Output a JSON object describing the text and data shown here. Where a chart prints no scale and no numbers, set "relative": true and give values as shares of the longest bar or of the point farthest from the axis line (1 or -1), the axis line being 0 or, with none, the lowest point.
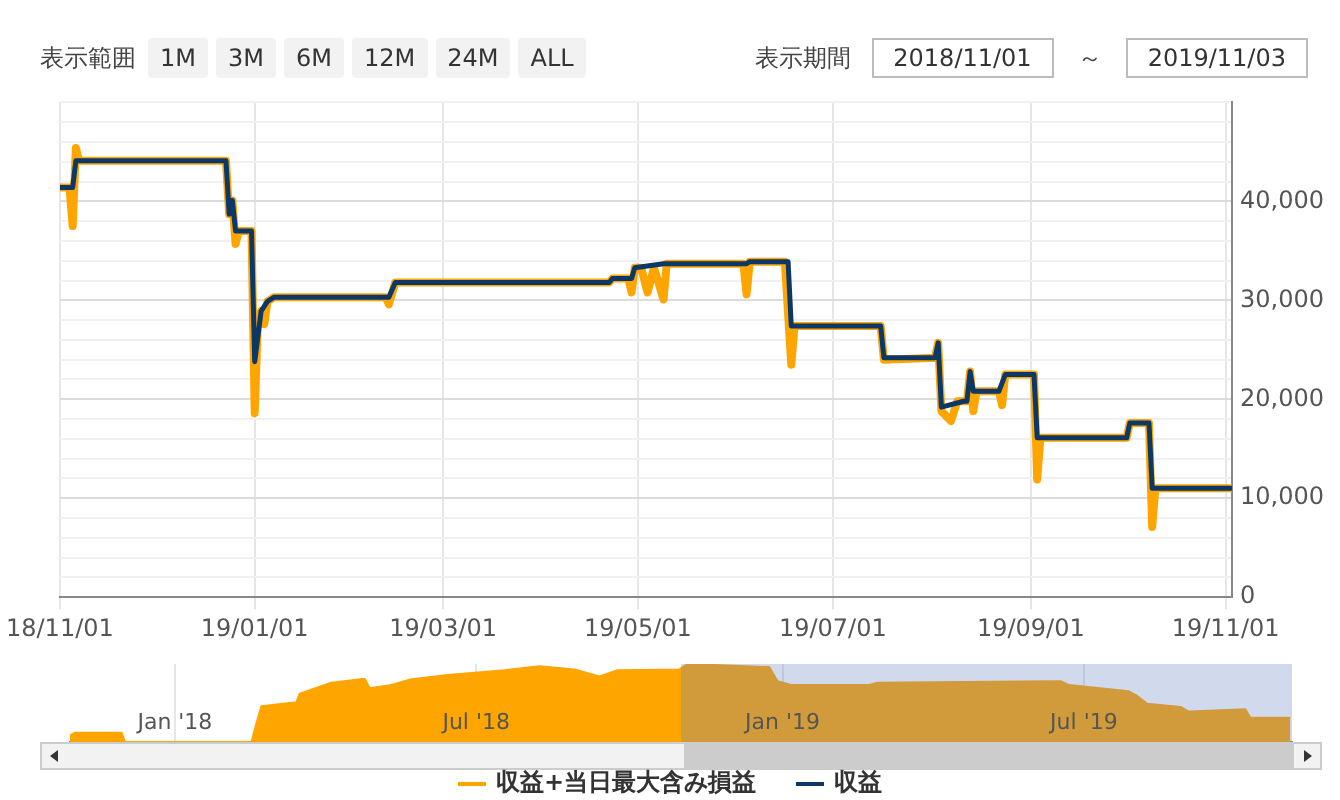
{
  "chart_data": [
    {
      "type": "line",
      "annotations": [
        "表示範囲",
        "1M",
        "3M",
        "6M",
        "12M",
        "24M",
        "ALL",
        "表示期間",
        "2018/11/01",
        "～",
        "2019/11/03"
      ],
      "xlim": [
        "2018-11-01",
        "2019-11-03"
      ],
      "xticks": [
        {
          "value": "2018-11-01",
          "label": "18/11/01"
        },
        {
          "value": "2019-01-01",
          "label": "19/01/01"
        },
        {
          "value": "2019-03-01",
          "label": "19/03/01"
        },
        {
          "value": "2019-05-01",
          "label": "19/05/01"
        },
        {
          "value": "2019-07-01",
          "label": "19/07/01"
        },
        {
          "value": "2019-09-01",
          "label": "19/09/01"
        },
        {
          "value": "2019-11-01",
          "label": "19/11/01"
        }
      ],
      "ylim": [
        0,
        50000
      ],
      "yticks": [
        0,
        {
          "value": 2000,
          "label": null
        },
        {
          "value": 4000,
          "label": null
        },
        {
          "value": 6000,
          "label": null
        },
        {
          "value": 8000,
          "label": null
        },
        {
          "value": 10000,
          "label": "10,000"
        },
        {
          "value": 12000,
          "label": null
        },
        {
          "value": 14000,
          "label": null
        },
        {
          "value": 16000,
          "label": null
        },
        {
          "value": 18000,
          "label": null
        },
        {
          "value": 20000,
          "label": "20,000"
        },
        {
          "value": 22000,
          "label": null
        },
        {
          "value": 24000,
          "label": null
        },
        {
          "value": 26000,
          "label": null
        },
        {
          "value": 28000,
          "label": null
        },
        {
          "value": 30000,
          "label": "30,000"
        },
        {
          "value": 32000,
          "label": null
        },
        {
          "value": 34000,
          "label": null
        },
        {
          "value": 36000,
          "label": null
        },
        {
          "value": 38000,
          "label": null
        },
        {
          "value": 40000,
          "label": "40,000"
        },
        {
          "value": 42000,
          "label": null
        },
        {
          "value": 44000,
          "label": null
        },
        {
          "value": 46000,
          "label": null
        },
        {
          "value": 48000,
          "label": null
        },
        {
          "value": 50000,
          "label": null
        }
      ],
      "grid": true,
      "legend": "bottom",
      "marker": "none",
      "series": [
        {
          "name": "収益+当日最大含み損益",
          "color": "#ffa500",
          "x": [
            "2018-11-01",
            "2018-11-04",
            "2018-11-05",
            "2018-11-06",
            "2018-11-07",
            "2018-12-23",
            "2018-12-24",
            "2018-12-25",
            "2018-12-26",
            "2018-12-27",
            "2018-12-31",
            "2019-01-01",
            "2019-01-02",
            "2019-01-03",
            "2019-01-04",
            "2019-01-05",
            "2019-01-07",
            "2019-02-11",
            "2019-02-12",
            "2019-02-14",
            "2019-04-22",
            "2019-04-23",
            "2019-04-28",
            "2019-04-29",
            "2019-04-30",
            "2019-05-02",
            "2019-05-04",
            "2019-05-06",
            "2019-05-09",
            "2019-05-10",
            "2019-06-03",
            "2019-06-04",
            "2019-06-05",
            "2019-06-16",
            "2019-06-18",
            "2019-06-19",
            "2019-07-16",
            "2019-07-17",
            "2019-08-02",
            "2019-08-03",
            "2019-08-04",
            "2019-08-07",
            "2019-08-09",
            "2019-08-12",
            "2019-08-13",
            "2019-08-14",
            "2019-08-15",
            "2019-08-22",
            "2019-08-23",
            "2019-08-24",
            "2019-09-02",
            "2019-09-03",
            "2019-09-04",
            "2019-10-01",
            "2019-10-02",
            "2019-10-08",
            "2019-10-09",
            "2019-10-10",
            "2019-11-03"
          ],
          "values": [
            41400,
            41400,
            37500,
            45400,
            44100,
            44100,
            38700,
            40100,
            35700,
            37000,
            37000,
            18600,
            28000,
            28900,
            27600,
            29900,
            30300,
            30300,
            29600,
            31800,
            31800,
            32200,
            32200,
            30800,
            33300,
            33300,
            30800,
            33300,
            30100,
            33700,
            33700,
            30600,
            33900,
            33900,
            23500,
            27400,
            27400,
            24000,
            24200,
            25700,
            18800,
            17800,
            19800,
            19800,
            22800,
            18800,
            20800,
            20800,
            19400,
            22500,
            22500,
            11900,
            16100,
            16100,
            17600,
            17600,
            7100,
            11000,
            11000
          ]
        },
        {
          "name": "収益",
          "color": "#0c3868",
          "x": [
            "2018-11-01",
            "2018-11-05",
            "2018-11-06",
            "2018-12-23",
            "2018-12-24",
            "2018-12-25",
            "2018-12-26",
            "2018-12-31",
            "2019-01-01",
            "2019-01-03",
            "2019-01-05",
            "2019-01-07",
            "2019-02-12",
            "2019-02-14",
            "2019-04-22",
            "2019-04-23",
            "2019-04-29",
            "2019-04-30",
            "2019-05-09",
            "2019-06-04",
            "2019-06-05",
            "2019-06-17",
            "2019-06-18",
            "2019-07-16",
            "2019-07-17",
            "2019-08-02",
            "2019-08-03",
            "2019-08-04",
            "2019-08-11",
            "2019-08-12",
            "2019-08-13",
            "2019-08-14",
            "2019-08-22",
            "2019-08-24",
            "2019-09-02",
            "2019-09-03",
            "2019-10-01",
            "2019-10-02",
            "2019-10-08",
            "2019-10-09",
            "2019-11-03"
          ],
          "values": [
            41400,
            41400,
            44100,
            44100,
            38700,
            40100,
            37000,
            37000,
            23800,
            28900,
            29900,
            30300,
            30300,
            31800,
            31800,
            32200,
            32200,
            33300,
            33700,
            33700,
            33900,
            33900,
            27400,
            27400,
            24200,
            24200,
            25700,
            19200,
            19800,
            19800,
            22800,
            20800,
            20800,
            22500,
            22500,
            16100,
            16100,
            17600,
            17600,
            11000,
            11000
          ]
        }
      ]
    },
    {
      "type": "area",
      "relative": true,
      "color": "#ffa500",
      "grid": "x",
      "xlim": [
        "2017-10-30",
        "2019-11-03"
      ],
      "xticks": [
        {
          "value": "2018-01-01",
          "label": "Jan '18"
        },
        {
          "value": "2018-07-01",
          "label": "Jul '18"
        },
        {
          "value": "2019-01-01",
          "label": "Jan '19"
        },
        {
          "value": "2019-07-01",
          "label": "Jul '19"
        }
      ],
      "bands": [
        {
          "axis": "x",
          "from": "2018-11-01",
          "to": "2019-11-03",
          "color": "#6685c2"
        }
      ],
      "x": [
        "2017-10-30",
        "2017-11-02",
        "2017-11-30",
        "2017-12-02",
        "2018-02-16",
        "2018-02-19",
        "2018-02-22",
        "2018-03-15",
        "2018-03-17",
        "2018-04-05",
        "2018-04-25",
        "2018-04-28",
        "2018-05-11",
        "2018-05-22",
        "2018-06-14",
        "2018-07-18",
        "2018-08-08",
        "2018-08-29",
        "2018-09-13",
        "2018-09-24",
        "2018-10-31",
        "2018-11-05",
        "2018-12-24",
        "2018-12-29",
        "2019-01-06",
        "2019-02-22",
        "2019-02-27",
        "2019-06-17",
        "2019-06-22",
        "2019-07-28",
        "2019-08-02",
        "2019-08-08",
        "2019-08-28",
        "2019-09-02",
        "2019-10-06",
        "2019-10-09",
        "2019-11-02"
      ],
      "values": [
        0.08,
        0.12,
        0.12,
        0,
        0,
        0.24,
        0.46,
        0.51,
        0.62,
        0.76,
        0.81,
        0.69,
        0.73,
        0.8,
        0.86,
        0.92,
        0.97,
        0.93,
        0.84,
        0.92,
        0.93,
        1,
        0.96,
        0.78,
        0.73,
        0.73,
        0.76,
        0.78,
        0.73,
        0.65,
        0.59,
        0.49,
        0.45,
        0.39,
        0.42,
        0.31,
        0.31
      ]
    }
  ]
}
